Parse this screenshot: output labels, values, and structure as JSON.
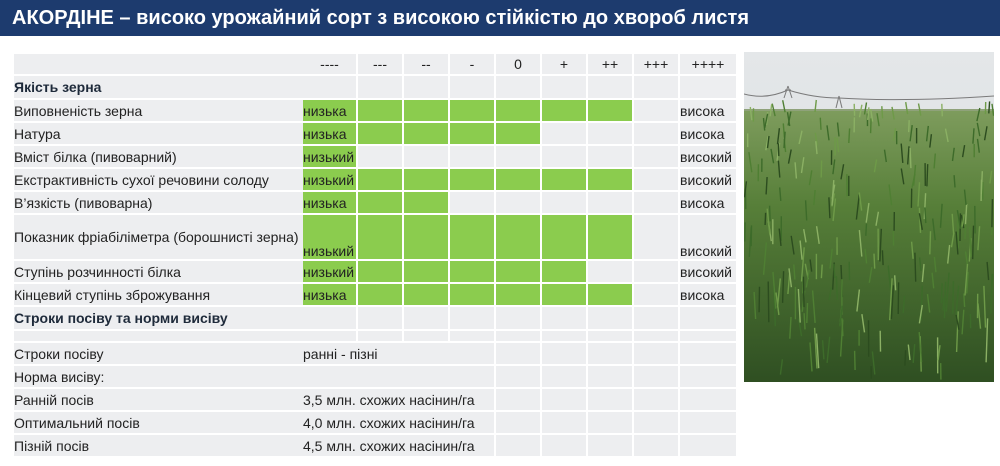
{
  "title": "АКОРДІНЕ – високо урожайний сорт з високою стійкістю до хвороб листя",
  "scale": [
    "----",
    "---",
    "--",
    "-",
    "0",
    "+",
    "++",
    "+++",
    "++++"
  ],
  "colors": {
    "header": "#1d3b6e",
    "fill": "#8bcc4e",
    "empty": "#edeef0"
  },
  "sections": {
    "quality": "Якість зерна",
    "sowing": "Строки посіву та норми висіву"
  },
  "quality_rows": [
    {
      "label": "Виповненість зерна",
      "low": "низька",
      "high": "висока",
      "filled": 7
    },
    {
      "label": "Натура",
      "low": "низька",
      "high": "висока",
      "filled": 5
    },
    {
      "label": "Вміст білка (пивоварний)",
      "low": "низький",
      "high": "високий",
      "filled": 1
    },
    {
      "label": "Екстрактивність сухої речовини солоду",
      "low": "низький",
      "high": "високий",
      "filled": 7
    },
    {
      "label": "В’язкість (пивоварна)",
      "low": "низька",
      "high": "висока",
      "filled": 3
    },
    {
      "label": "Показник фріабіліметра (борошнисті зерна)",
      "low": "низький",
      "high": "високий",
      "filled": 7
    },
    {
      "label": "Ступінь розчинності білка",
      "low": "низький",
      "high": "високий",
      "filled": 6
    },
    {
      "label": "Кінцевий ступінь зброжування",
      "low": "низька",
      "high": "висока",
      "filled": 7
    }
  ],
  "sowing_rows": [
    {
      "label": "Строки посіву",
      "value": "ранні - пізні"
    },
    {
      "label": "Норма висіву:",
      "value": ""
    },
    {
      "label": "Ранній посів",
      "value": "3,5 млн. схожих насінин/га"
    },
    {
      "label": "Оптимальний посів",
      "value": "4,0 млн. схожих насінин/га"
    },
    {
      "label": "Пізній посів",
      "value": "4,5 млн. схожих насінин/га"
    }
  ],
  "photo_icon": "barley-field-photo"
}
